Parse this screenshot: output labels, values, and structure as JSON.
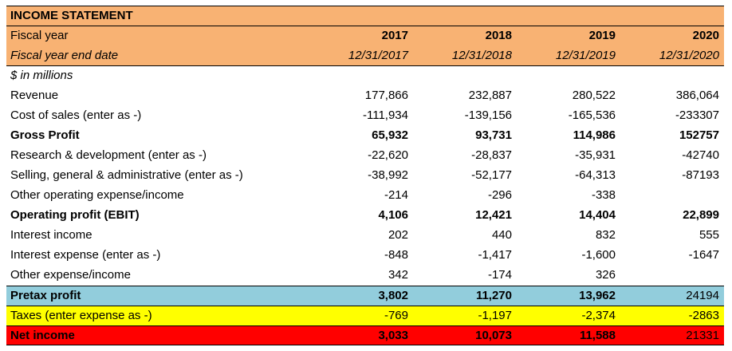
{
  "title": "INCOME STATEMENT",
  "units_note": "$ in millions",
  "colors": {
    "header_bg": "#F8B273",
    "pretax_bg": "#92CDDC",
    "taxes_bg": "#FFFF00",
    "net_income_bg": "#FF0000"
  },
  "header": {
    "fiscal_year_label": "Fiscal year",
    "fiscal_year_end_label": "Fiscal year end date",
    "years": [
      "2017",
      "2018",
      "2019",
      "2020"
    ],
    "dates": [
      "12/31/2017",
      "12/31/2018",
      "12/31/2019",
      "12/31/2020"
    ]
  },
  "rows": [
    {
      "label": "Revenue",
      "values": [
        "177,866",
        "232,887",
        "280,522",
        "386,064"
      ],
      "style": "normal"
    },
    {
      "label": "Cost of sales (enter as -)",
      "values": [
        "-111,934",
        "-139,156",
        "-165,536",
        "-233307"
      ],
      "style": "normal"
    },
    {
      "label": "Gross Profit",
      "values": [
        "65,932",
        "93,731",
        "114,986",
        "152757"
      ],
      "style": "subtotal"
    },
    {
      "label": "Research & development (enter as -)",
      "values": [
        "-22,620",
        "-28,837",
        "-35,931",
        "-42740"
      ],
      "style": "normal"
    },
    {
      "label": "Selling, general & administrative (enter as -)",
      "values": [
        "-38,992",
        "-52,177",
        "-64,313",
        "-87193"
      ],
      "style": "normal"
    },
    {
      "label": "Other operating expense/income",
      "values": [
        "-214",
        "-296",
        "-338",
        ""
      ],
      "style": "normal"
    },
    {
      "label": "Operating profit (EBIT)",
      "values": [
        "4,106",
        "12,421",
        "14,404",
        "22,899"
      ],
      "style": "subtotal"
    },
    {
      "label": "Interest income",
      "values": [
        "202",
        "440",
        "832",
        "555"
      ],
      "style": "normal"
    },
    {
      "label": "Interest expense (enter as -)",
      "values": [
        "-848",
        "-1,417",
        "-1,600",
        "-1647"
      ],
      "style": "normal"
    },
    {
      "label": "Other expense/income",
      "values": [
        "342",
        "-174",
        "326",
        ""
      ],
      "style": "normal"
    },
    {
      "label": "Pretax profit",
      "values": [
        "3,802",
        "11,270",
        "13,962",
        "24194"
      ],
      "style": "pretax"
    },
    {
      "label": "Taxes (enter expense as -)",
      "values": [
        "-769",
        "-1,197",
        "-2,374",
        "-2863"
      ],
      "style": "taxes"
    },
    {
      "label": "Net income",
      "values": [
        "3,033",
        "10,073",
        "11,588",
        "21331"
      ],
      "style": "net"
    }
  ]
}
